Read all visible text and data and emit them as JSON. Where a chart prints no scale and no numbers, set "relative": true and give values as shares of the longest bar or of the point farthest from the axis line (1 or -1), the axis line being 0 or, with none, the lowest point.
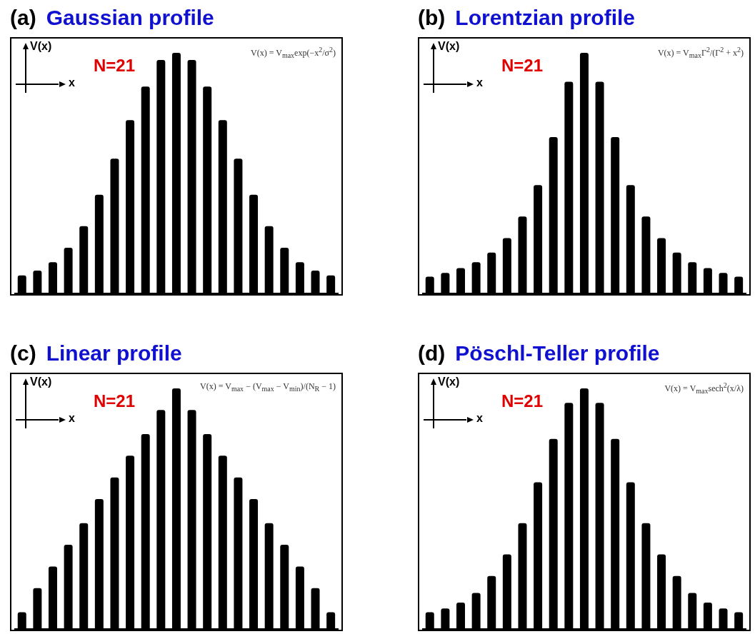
{
  "chart_data": [
    {
      "type": "bar",
      "title": "(a) Gaussian profile",
      "categories": [
        null,
        null,
        null,
        null,
        null,
        null,
        null,
        null,
        null,
        null,
        null,
        null,
        null,
        null,
        null,
        null,
        null,
        null,
        null,
        null,
        null
      ],
      "values": [
        0.075,
        0.095,
        0.13,
        0.19,
        0.28,
        0.41,
        0.56,
        0.72,
        0.86,
        0.97,
        1,
        0.97,
        0.86,
        0.72,
        0.56,
        0.41,
        0.28,
        0.19,
        0.13,
        0.095,
        0.075
      ],
      "color": "#000000",
      "relative": true,
      "annotations": [
        "N=21",
        "V(x)",
        "x",
        "V(x) = V$_{max}$exp(−x$^{2}$/σ$^{2}$)"
      ]
    },
    {
      "type": "bar",
      "title": "(b) Lorentzian profile",
      "categories": [
        null,
        null,
        null,
        null,
        null,
        null,
        null,
        null,
        null,
        null,
        null,
        null,
        null,
        null,
        null,
        null,
        null,
        null,
        null,
        null,
        null
      ],
      "values": [
        0.07,
        0.085,
        0.105,
        0.13,
        0.17,
        0.23,
        0.32,
        0.45,
        0.65,
        0.88,
        1,
        0.88,
        0.65,
        0.45,
        0.32,
        0.23,
        0.17,
        0.13,
        0.105,
        0.085,
        0.07
      ],
      "color": "#000000",
      "relative": true,
      "annotations": [
        "N=21",
        "V(x)",
        "x",
        "V(x) = V$_{max}$Γ$^{2}$/(Γ$^{2}$ + x$^{2}$)"
      ]
    },
    {
      "type": "bar",
      "title": "(c) Linear profile",
      "categories": [
        null,
        null,
        null,
        null,
        null,
        null,
        null,
        null,
        null,
        null,
        null,
        null,
        null,
        null,
        null,
        null,
        null,
        null,
        null,
        null,
        null
      ],
      "values": [
        0.07,
        0.17,
        0.26,
        0.35,
        0.44,
        0.54,
        0.63,
        0.72,
        0.81,
        0.91,
        1,
        0.91,
        0.81,
        0.72,
        0.63,
        0.54,
        0.44,
        0.35,
        0.26,
        0.17,
        0.07
      ],
      "color": "#000000",
      "relative": true,
      "annotations": [
        "N=21",
        "V(x)",
        "x",
        "V(x) = V$_{max}$ − (V$_{max}$ − V$_{min}$)/(N$_{R}$ − 1)"
      ]
    },
    {
      "type": "bar",
      "title": "(d) Pöschl-Teller profile",
      "categories": [
        null,
        null,
        null,
        null,
        null,
        null,
        null,
        null,
        null,
        null,
        null,
        null,
        null,
        null,
        null,
        null,
        null,
        null,
        null,
        null,
        null
      ],
      "values": [
        0.07,
        0.085,
        0.11,
        0.15,
        0.22,
        0.31,
        0.44,
        0.61,
        0.79,
        0.94,
        1,
        0.94,
        0.79,
        0.61,
        0.44,
        0.31,
        0.22,
        0.15,
        0.11,
        0.085,
        0.07
      ],
      "color": "#000000",
      "relative": true,
      "annotations": [
        "N=21",
        "V(x)",
        "x",
        "V(x) = V$_{max}$sech$^{2}$(x/λ)"
      ]
    }
  ]
}
